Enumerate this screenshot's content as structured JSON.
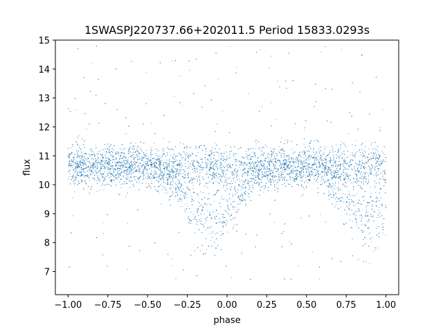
{
  "chart_data": {
    "type": "scatter",
    "title": "1SWASPJ220737.66+202011.5 Period 15833.0293s",
    "xlabel": "phase",
    "ylabel": "flux",
    "xlim": [
      -1.08,
      1.08
    ],
    "ylim": [
      6.2,
      15.0
    ],
    "x_ticks": [
      -1.0,
      -0.75,
      -0.5,
      -0.25,
      0.0,
      0.25,
      0.5,
      0.75,
      1.0
    ],
    "x_tick_labels": [
      "−1.00",
      "−0.75",
      "−0.50",
      "−0.25",
      "0.00",
      "0.25",
      "0.50",
      "0.75",
      "1.00"
    ],
    "y_ticks": [
      7,
      8,
      9,
      10,
      11,
      12,
      13,
      14,
      15
    ],
    "y_tick_labels": [
      "7",
      "8",
      "9",
      "10",
      "11",
      "12",
      "13",
      "14",
      "15"
    ],
    "grid": false,
    "legend": "none",
    "marker_color": "#1f77b4",
    "series": [
      {
        "phase_range": [
          -1.0,
          1.0
        ],
        "baseline_flux": 10.65,
        "baseline_spread": 0.35,
        "dip_centers": [
          -0.1,
          0.9
        ],
        "dip_minimum_flux": 8.4,
        "dip_half_width": 0.22,
        "outlier_flux_range": [
          6.6,
          14.8
        ]
      }
    ]
  }
}
